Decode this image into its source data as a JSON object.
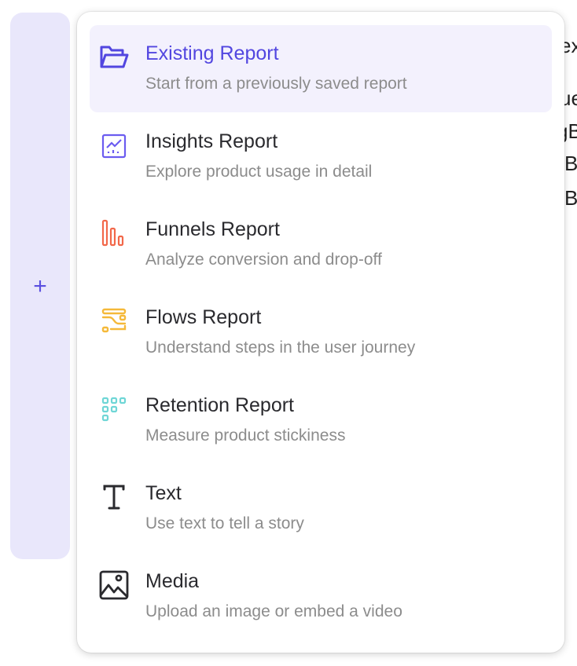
{
  "add_panel": {
    "icon": "plus-icon",
    "accent": "#5a4fe0"
  },
  "background_fragments": [
    "ex",
    "ue",
    "gB",
    "B",
    "B"
  ],
  "menu": {
    "items": [
      {
        "title": "Existing Report",
        "subtitle": "Start from a previously saved report",
        "icon": "folder-open-icon",
        "color": "#5246e0",
        "selected": true
      },
      {
        "title": "Insights Report",
        "subtitle": "Explore product usage in detail",
        "icon": "insights-chart-icon",
        "color": "#6b5cf0"
      },
      {
        "title": "Funnels Report",
        "subtitle": "Analyze conversion and drop-off",
        "icon": "funnel-bars-icon",
        "color": "#f2684a"
      },
      {
        "title": "Flows Report",
        "subtitle": "Understand steps in the user journey",
        "icon": "flows-icon",
        "color": "#f5b93a"
      },
      {
        "title": "Retention Report",
        "subtitle": "Measure product stickiness",
        "icon": "retention-grid-icon",
        "color": "#6fd6d6"
      },
      {
        "title": "Text",
        "subtitle": "Use text to tell a story",
        "icon": "text-icon",
        "color": "#2a2a2e"
      },
      {
        "title": "Media",
        "subtitle": "Upload an image or embed a video",
        "icon": "image-icon",
        "color": "#2a2a2e"
      }
    ]
  }
}
